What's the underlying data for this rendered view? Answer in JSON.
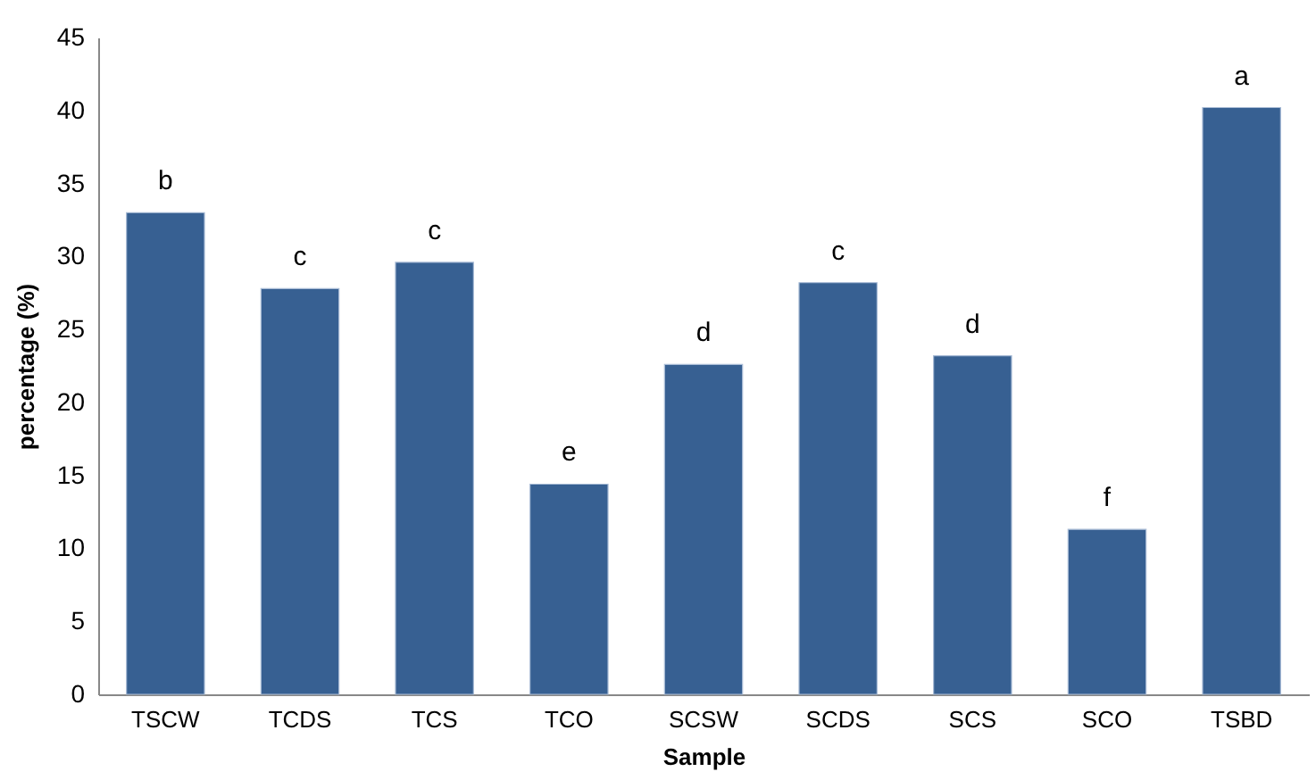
{
  "chart_data": {
    "type": "bar",
    "xlabel": "Sample",
    "ylabel": "percentage (%)",
    "categories": [
      "TSCW",
      "TCDS",
      "TCS",
      "TCO",
      "SCSW",
      "SCDS",
      "SCS",
      "SCO",
      "TSBD"
    ],
    "values": [
      33.0,
      27.8,
      29.6,
      14.4,
      22.6,
      28.2,
      23.2,
      11.3,
      40.2
    ],
    "color": "#376092",
    "ylim": [
      0,
      45
    ],
    "yticks": [
      0,
      5,
      10,
      15,
      20,
      25,
      30,
      35,
      40,
      45
    ],
    "grid": false,
    "annotations": [
      {
        "text": "b",
        "x": "TSCW",
        "y": 33.0
      },
      {
        "text": "c",
        "x": "TCDS",
        "y": 27.8
      },
      {
        "text": "c",
        "x": "TCS",
        "y": 29.6
      },
      {
        "text": "e",
        "x": "TCO",
        "y": 14.4
      },
      {
        "text": "d",
        "x": "SCSW",
        "y": 22.6
      },
      {
        "text": "c",
        "x": "SCDS",
        "y": 28.2
      },
      {
        "text": "d",
        "x": "SCS",
        "y": 23.2
      },
      {
        "text": "f",
        "x": "SCO",
        "y": 11.3
      },
      {
        "text": "a",
        "x": "TSBD",
        "y": 40.2
      }
    ]
  }
}
